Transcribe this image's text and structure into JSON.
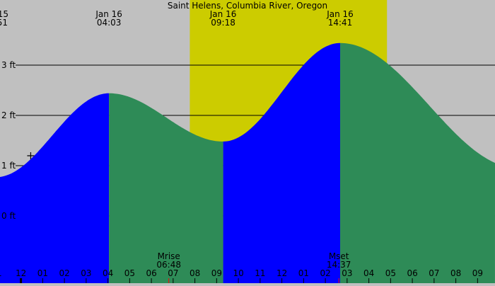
{
  "chart_data": {
    "type": "area",
    "title": "Saint Helens, Columbia River, Oregon",
    "y_unit": "ft",
    "y_ticks": [
      {
        "value": 0,
        "label": "0 ft"
      },
      {
        "value": 1,
        "label": "1 ft"
      },
      {
        "value": 2,
        "label": "2 ft"
      },
      {
        "value": 3,
        "label": "3 ft"
      }
    ],
    "x_range_hours": [
      -1.0,
      21.8
    ],
    "x_tick_labels": [
      "1",
      "12",
      "01",
      "02",
      "03",
      "04",
      "05",
      "06",
      "07",
      "08",
      "09",
      "10",
      "11",
      "12",
      "01",
      "02",
      "03",
      "04",
      "05",
      "06",
      "07",
      "08",
      "09"
    ],
    "grid": true,
    "daylight": {
      "start": "07:46",
      "end": "16:50"
    },
    "tide_events": [
      {
        "date": "15",
        "time": "51",
        "hour": -1.15,
        "height": 0.77,
        "type": "low"
      },
      {
        "date": "Jan 16",
        "time": "04:03",
        "hour": 4.05,
        "height": 2.44,
        "type": "high"
      },
      {
        "date": "Jan 16",
        "time": "09:18",
        "hour": 9.3,
        "height": 1.48,
        "type": "low"
      },
      {
        "date": "Jan 16",
        "time": "14:41",
        "hour": 14.68,
        "height": 3.44,
        "type": "high"
      }
    ],
    "curve_end": {
      "hour": 21.8,
      "height": 1.23
    },
    "now_marker": {
      "hour": 0.45,
      "height": 1.2
    },
    "moon_events": [
      {
        "label": "Mrise",
        "time": "06:48",
        "hour": 6.8
      },
      {
        "label": "Mset",
        "time": "14:37",
        "hour": 14.62
      }
    ],
    "colors": {
      "background": "#c0c0c0",
      "daylight": "#cccc00",
      "rising": "#0000ff",
      "falling": "#2e8b57",
      "moon_tick": "#ff0000"
    }
  }
}
